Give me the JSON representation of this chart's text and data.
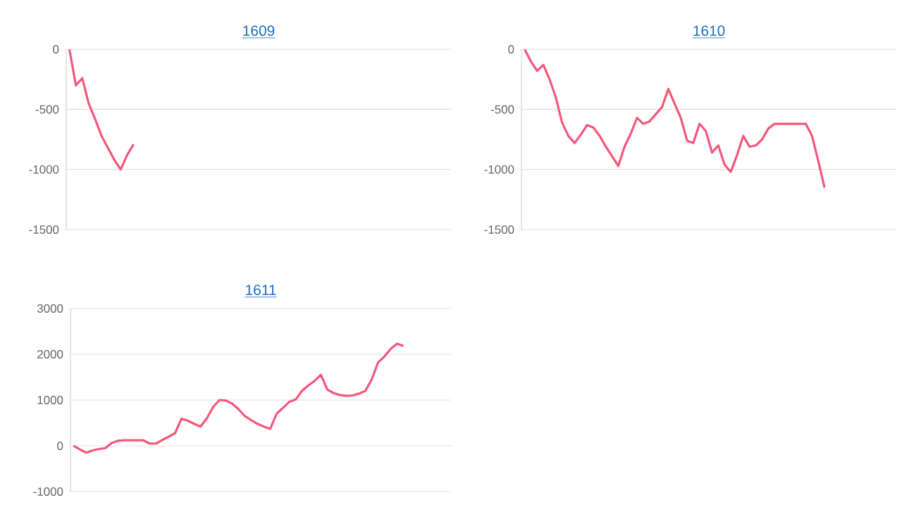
{
  "chart_data": [
    {
      "type": "line",
      "title": "1609",
      "categories": [
        null,
        null,
        null,
        null,
        null,
        null,
        null,
        null,
        null,
        null,
        null,
        null,
        null,
        null,
        null,
        null,
        null,
        null,
        null,
        null,
        null,
        null,
        null,
        null,
        null,
        null,
        null,
        null,
        null,
        null,
        null,
        null,
        null,
        null,
        null,
        null,
        null,
        null,
        null,
        null,
        null,
        null,
        null,
        null,
        null,
        null,
        null,
        null,
        null,
        null,
        null,
        null,
        null,
        null,
        null,
        null,
        null,
        null,
        null,
        null
      ],
      "values": [
        0,
        -300,
        -240,
        -450,
        -580,
        -720,
        -820,
        -920,
        -1000,
        -880,
        -790,
        null,
        null,
        null,
        null,
        null,
        null,
        null,
        null,
        null,
        null,
        null,
        null,
        null,
        null,
        null,
        null,
        null,
        null,
        null,
        null,
        null,
        null,
        null,
        null,
        null,
        null,
        null,
        null,
        null,
        null,
        null,
        null,
        null,
        null,
        null,
        null,
        null,
        null,
        null,
        null,
        null,
        null,
        null,
        null,
        null,
        null,
        null,
        null,
        null
      ],
      "color": "#f5577a",
      "ylim": [
        -1500,
        0
      ],
      "yticks": [
        -1500,
        -1000,
        -500,
        0
      ],
      "grid": "y"
    },
    {
      "type": "line",
      "title": "1610",
      "categories": [
        null,
        null,
        null,
        null,
        null,
        null,
        null,
        null,
        null,
        null,
        null,
        null,
        null,
        null,
        null,
        null,
        null,
        null,
        null,
        null,
        null,
        null,
        null,
        null,
        null,
        null,
        null,
        null,
        null,
        null,
        null,
        null,
        null,
        null,
        null,
        null,
        null,
        null,
        null,
        null,
        null,
        null,
        null,
        null,
        null,
        null,
        null,
        null,
        null,
        null,
        null,
        null,
        null,
        null,
        null,
        null,
        null,
        null,
        null,
        null
      ],
      "values": [
        0,
        -100,
        -180,
        -130,
        -250,
        -400,
        -610,
        -720,
        -780,
        -710,
        -630,
        -650,
        -720,
        -810,
        -890,
        -970,
        -810,
        -700,
        -570,
        -620,
        -600,
        -540,
        -480,
        -330,
        -450,
        -570,
        -760,
        -780,
        -620,
        -680,
        -860,
        -800,
        -960,
        -1020,
        -880,
        -720,
        -810,
        -800,
        -750,
        -660,
        -620,
        -620,
        -620,
        -620,
        -620,
        -620,
        -720,
        -930,
        -1150,
        null,
        null,
        null,
        null,
        null,
        null,
        null,
        null,
        null,
        null,
        null
      ],
      "color": "#f5577a",
      "ylim": [
        -1500,
        0
      ],
      "yticks": [
        -1500,
        -1000,
        -500,
        0
      ],
      "grid": "y"
    },
    {
      "type": "line",
      "title": "1611",
      "categories": [
        null,
        null,
        null,
        null,
        null,
        null,
        null,
        null,
        null,
        null,
        null,
        null,
        null,
        null,
        null,
        null,
        null,
        null,
        null,
        null,
        null,
        null,
        null,
        null,
        null,
        null,
        null,
        null,
        null,
        null,
        null,
        null,
        null,
        null,
        null,
        null,
        null,
        null,
        null,
        null,
        null,
        null,
        null,
        null,
        null,
        null,
        null,
        null,
        null,
        null,
        null,
        null,
        null,
        null,
        null,
        null,
        null,
        null,
        null,
        null
      ],
      "values": [
        0,
        -80,
        -150,
        -100,
        -70,
        -50,
        60,
        110,
        120,
        120,
        120,
        120,
        50,
        50,
        130,
        200,
        280,
        590,
        550,
        480,
        420,
        600,
        850,
        1000,
        990,
        920,
        800,
        650,
        560,
        480,
        420,
        370,
        700,
        830,
        960,
        1010,
        1200,
        1320,
        1420,
        1550,
        1230,
        1150,
        1110,
        1090,
        1100,
        1140,
        1200,
        1450,
        1820,
        1950,
        2120,
        2230,
        2180,
        null,
        null,
        null,
        null,
        null,
        null,
        null
      ],
      "color": "#f5577a",
      "ylim": [
        -1000,
        3000
      ],
      "yticks": [
        -1000,
        0,
        1000,
        2000,
        3000
      ],
      "grid": "y"
    }
  ]
}
